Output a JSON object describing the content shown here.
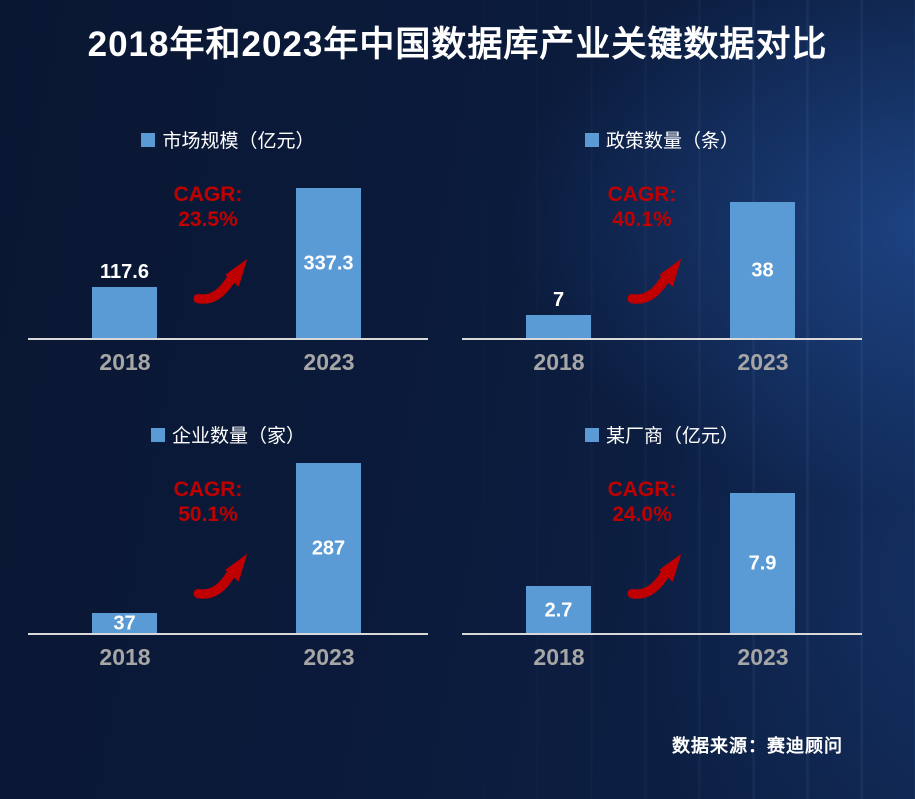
{
  "title": "2018年和2023年中国数据库产业关键数据对比",
  "source_label": "数据来源：赛迪顾问",
  "colors": {
    "background_dark": "#0a1733",
    "background_light": "#0e2349",
    "bar": "#5b9bd5",
    "cagr_red": "#c00000",
    "category_label": "#a6a6a6",
    "axis_line": "#d9d9d9",
    "text": "#ffffff"
  },
  "chart_data": [
    {
      "type": "bar",
      "title": "市场规模（亿元）",
      "categories": [
        "2018",
        "2023"
      ],
      "values": [
        117.6,
        337.3
      ],
      "value_labels": [
        "117.6",
        "337.3"
      ],
      "cagr_label": "CAGR:",
      "cagr_value": "23.5%",
      "legend_position": "top",
      "grid": false
    },
    {
      "type": "bar",
      "title": "政策数量（条）",
      "categories": [
        "2018",
        "2023"
      ],
      "values": [
        7,
        38
      ],
      "value_labels": [
        "7",
        "38"
      ],
      "cagr_label": "CAGR:",
      "cagr_value": "40.1%",
      "legend_position": "top",
      "grid": false
    },
    {
      "type": "bar",
      "title": "企业数量（家）",
      "categories": [
        "2018",
        "2023"
      ],
      "values": [
        37,
        287
      ],
      "value_labels": [
        "37",
        "287"
      ],
      "cagr_label": "CAGR:",
      "cagr_value": "50.1%",
      "legend_position": "top",
      "grid": false
    },
    {
      "type": "bar",
      "title": "某厂商（亿元）",
      "categories": [
        "2018",
        "2023"
      ],
      "values": [
        2.7,
        7.9
      ],
      "value_labels": [
        "2.7",
        "7.9"
      ],
      "cagr_label": "CAGR:",
      "cagr_value": "24.0%",
      "legend_position": "top",
      "grid": false
    }
  ]
}
